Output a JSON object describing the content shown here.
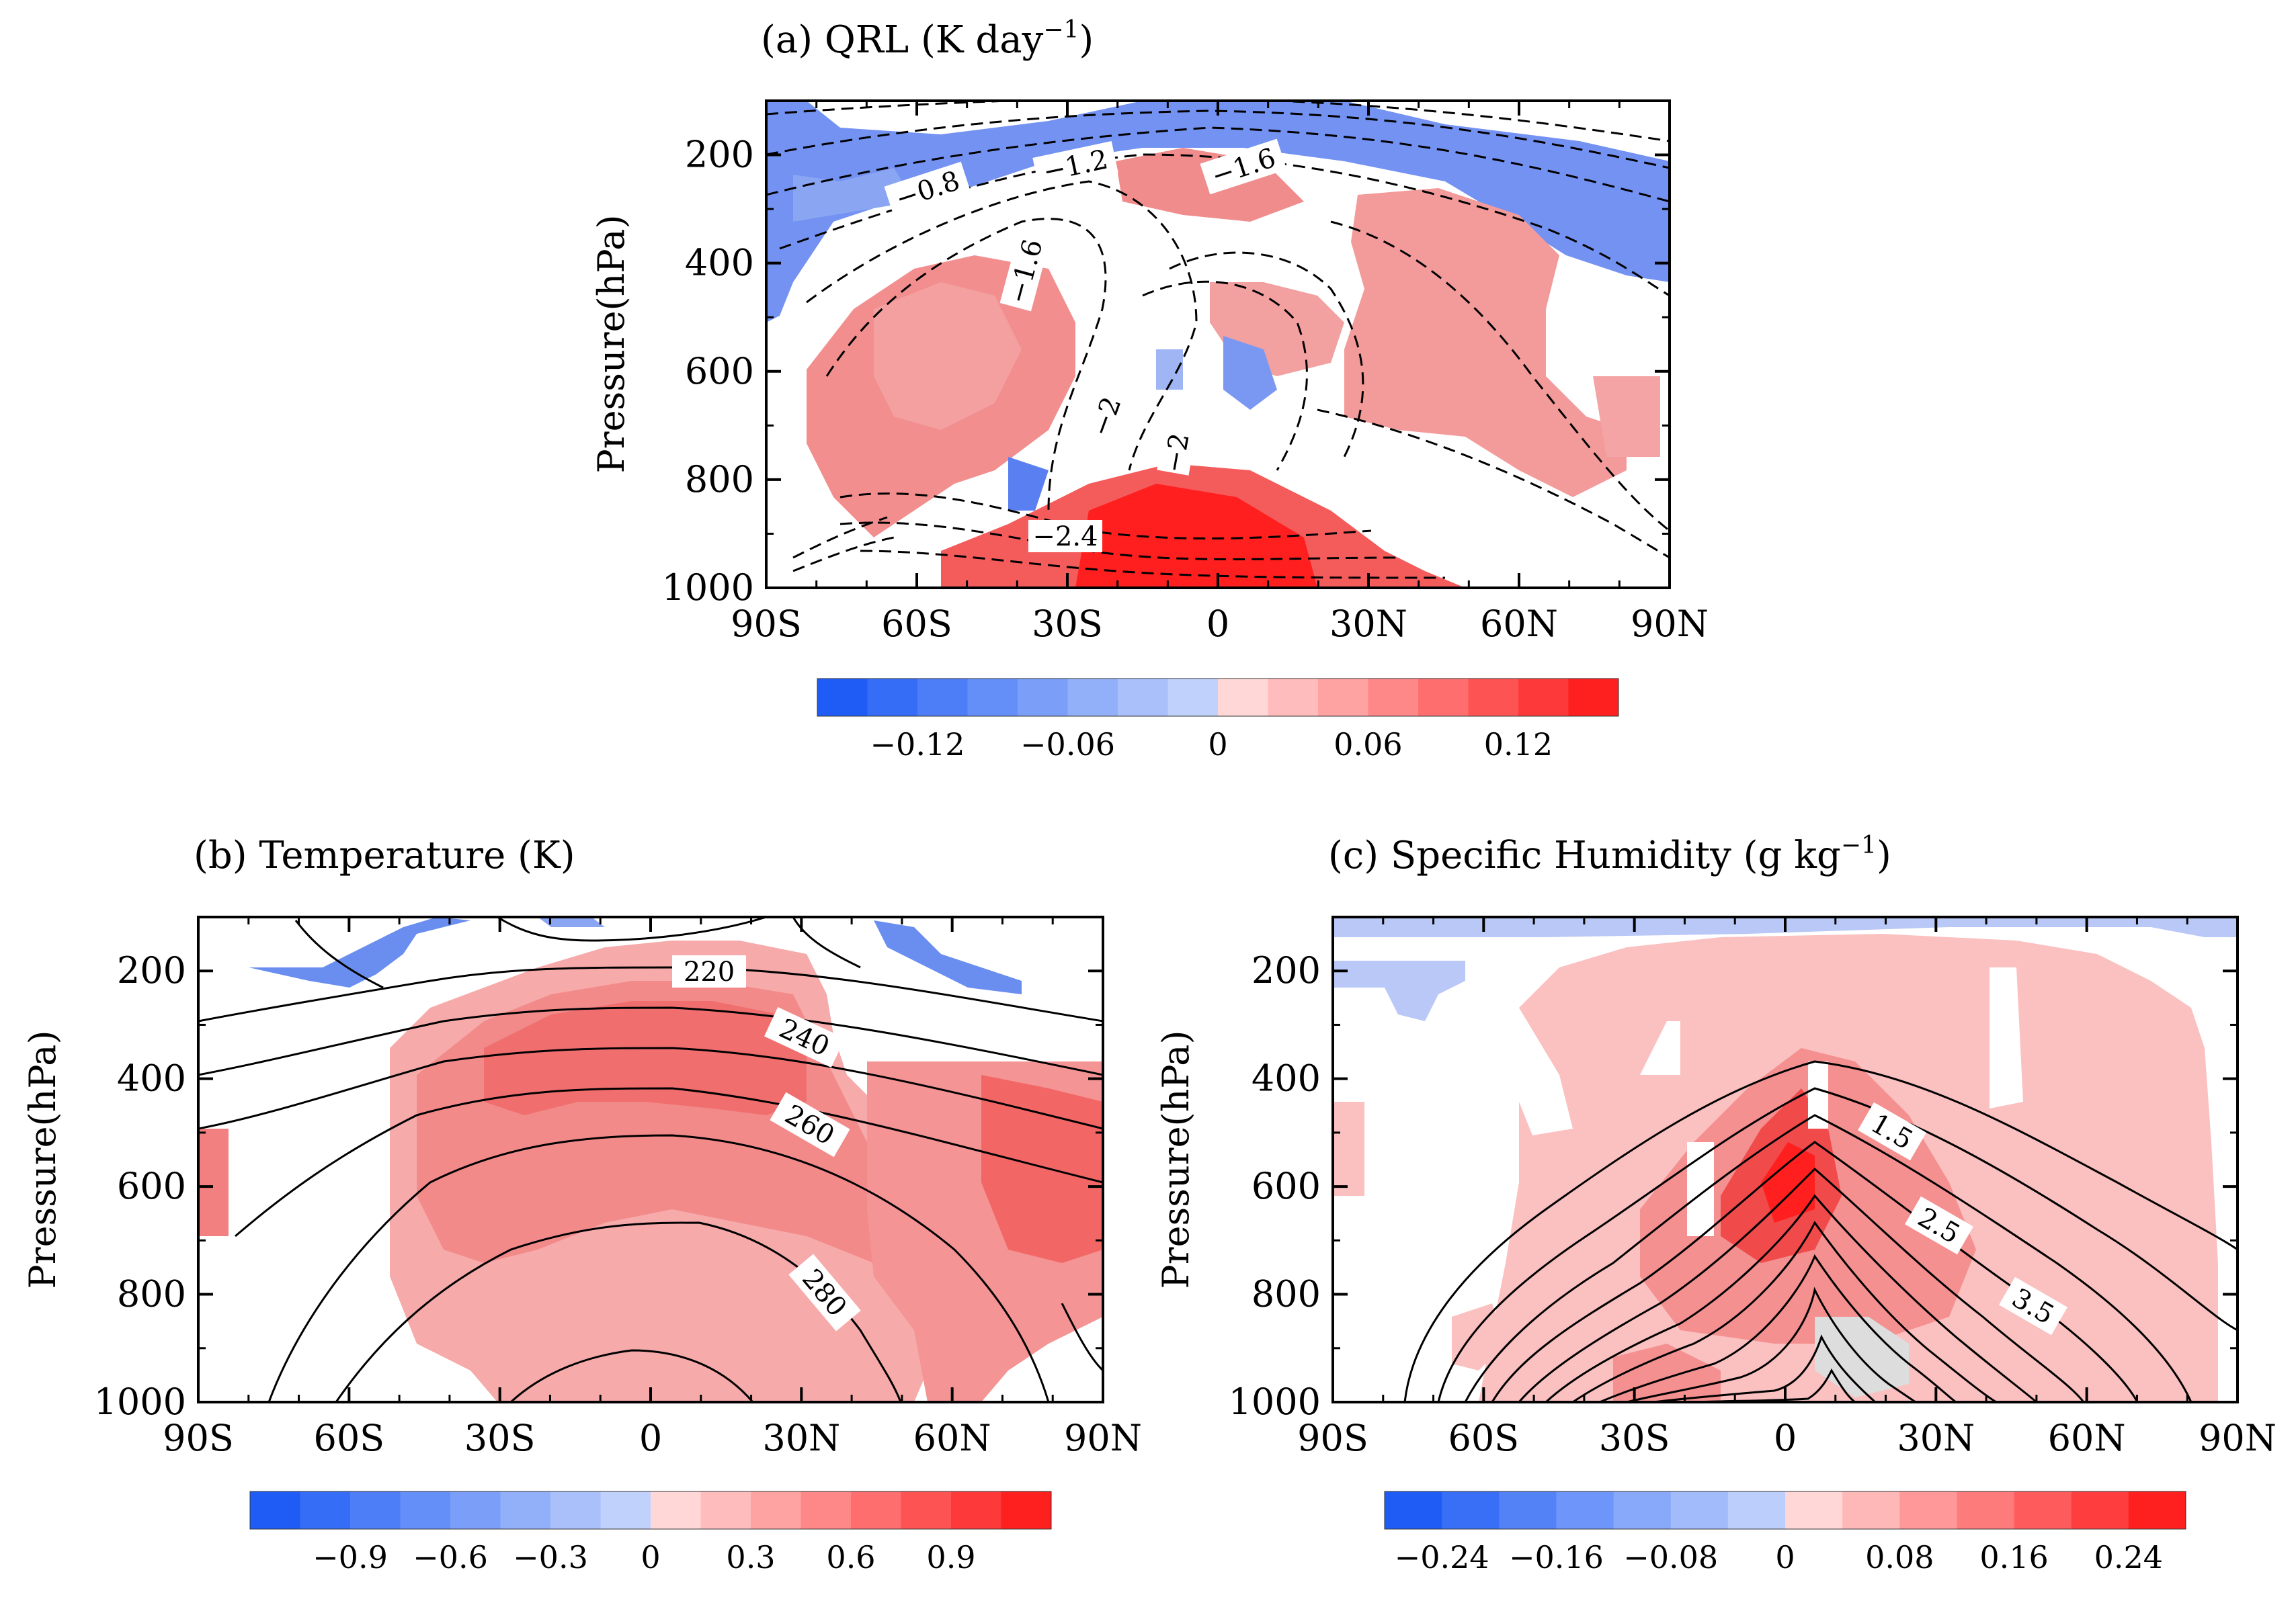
{
  "chart_data": [
    {
      "type": "heatmap",
      "panel": "a",
      "title": "(a) QRL (K day",
      "title_sup": "−1",
      "title_end": ")",
      "ylabel": "Pressure(hPa)",
      "xlabel": "",
      "x_ticks": [
        "90S",
        "60S",
        "30S",
        "0",
        "30N",
        "60N",
        "90N"
      ],
      "y_ticks": [
        "200",
        "400",
        "600",
        "800",
        "1000"
      ],
      "xlim": [
        -90,
        90
      ],
      "ylim": [
        1000,
        100
      ],
      "contour_style": "dashed",
      "contour_labels": [
        "−0.8",
        "−1.2",
        "−1.6",
        "−1.6",
        "−2",
        "−2",
        "−2.4"
      ],
      "colorbar": {
        "levels": 16,
        "range": [
          -0.16,
          0.16
        ],
        "tick_labels": [
          "−0.12",
          "−0.06",
          "0",
          "0.06",
          "0.12"
        ],
        "neg_color": "#1f5cf5",
        "pos_color": "#fe1f1f"
      }
    },
    {
      "type": "heatmap",
      "panel": "b",
      "title": "(b) Temperature (K)",
      "ylabel": "Pressure(hPa)",
      "xlabel": "",
      "x_ticks": [
        "90S",
        "60S",
        "30S",
        "0",
        "30N",
        "60N",
        "90N"
      ],
      "y_ticks": [
        "200",
        "400",
        "600",
        "800",
        "1000"
      ],
      "xlim": [
        -90,
        90
      ],
      "ylim": [
        1000,
        100
      ],
      "contour_style": "solid",
      "contour_labels": [
        "220",
        "240",
        "260",
        "280"
      ],
      "colorbar": {
        "levels": 16,
        "range": [
          -1.2,
          1.2
        ],
        "tick_labels": [
          "−0.9",
          "−0.6",
          "−0.3",
          "0",
          "0.3",
          "0.6",
          "0.9"
        ],
        "neg_color": "#1f5cf5",
        "pos_color": "#fe1f1f"
      }
    },
    {
      "type": "heatmap",
      "panel": "c",
      "title": "(c) Specific Humidity (g kg",
      "title_sup": "−1",
      "title_end": ")",
      "ylabel": "Pressure(hPa)",
      "xlabel": "",
      "x_ticks": [
        "90S",
        "60S",
        "30S",
        "0",
        "30N",
        "60N",
        "90N"
      ],
      "y_ticks": [
        "200",
        "400",
        "600",
        "800",
        "1000"
      ],
      "xlim": [
        -90,
        90
      ],
      "ylim": [
        1000,
        100
      ],
      "contour_style": "solid",
      "contour_labels": [
        "1.5",
        "2.5",
        "3.5"
      ],
      "colorbar": {
        "levels": 14,
        "range": [
          -0.28,
          0.28
        ],
        "tick_labels": [
          "−0.24",
          "−0.16",
          "−0.08",
          "0",
          "0.08",
          "0.16",
          "0.24"
        ],
        "neg_color": "#1f5cf5",
        "pos_color": "#fe1f1f"
      }
    }
  ]
}
